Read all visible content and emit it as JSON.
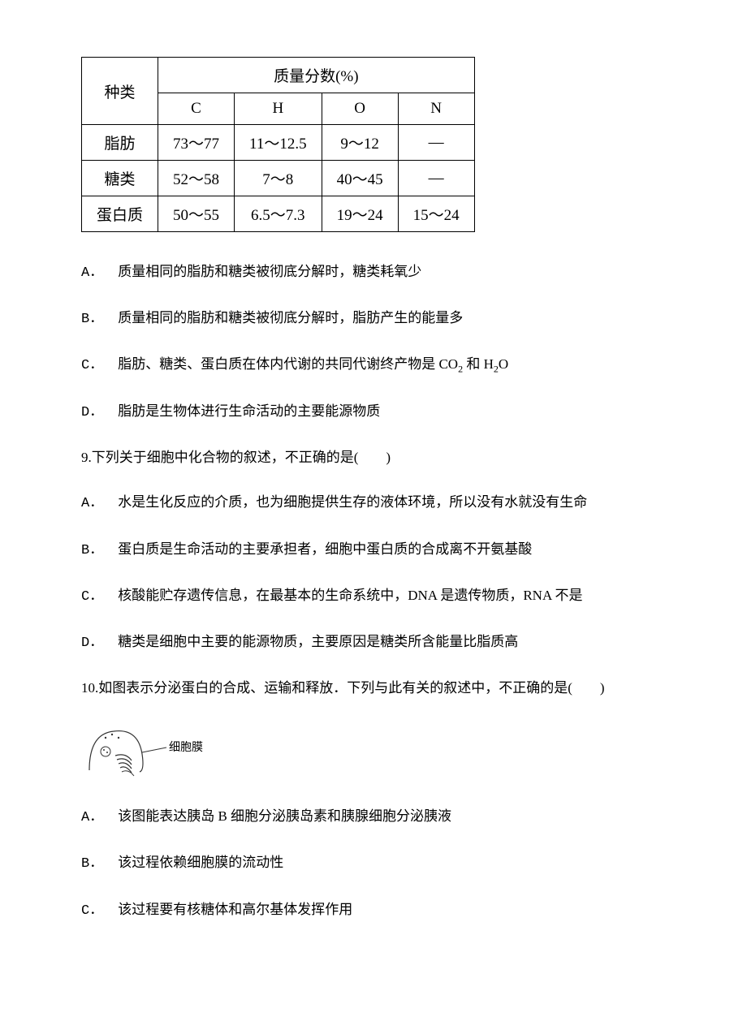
{
  "table": {
    "row_header_label": "种类",
    "group_header": "质量分数(%)",
    "columns": [
      "C",
      "H",
      "O",
      "N"
    ],
    "rows": [
      {
        "label": "脂肪",
        "cells": [
          "73～77",
          "11～12.5",
          "9～12",
          "—"
        ]
      },
      {
        "label": "糖类",
        "cells": [
          "52～58",
          "7～8",
          "40～45",
          "—"
        ]
      },
      {
        "label": "蛋白质",
        "cells": [
          "50～55",
          "6.5～7.3",
          "19～24",
          "15～24"
        ]
      }
    ],
    "border_color": "#000000",
    "background_color": "#ffffff",
    "font_size": 19
  },
  "q8_options": {
    "A": {
      "label": "A．",
      "text": "质量相同的脂肪和糖类被彻底分解时，糖类耗氧少"
    },
    "B": {
      "label": "B．",
      "text": "质量相同的脂肪和糖类被彻底分解时，脂肪产生的能量多"
    },
    "C": {
      "label": "C．",
      "text_html": "脂肪、糖类、蛋白质在体内代谢的共同代谢终产物是 CO<span class=\"sub\">2</span> 和 H<span class=\"sub\">2</span>O"
    },
    "D": {
      "label": "D．",
      "text": "脂肪是生物体进行生命活动的主要能源物质"
    }
  },
  "q9": {
    "stem": "9.下列关于细胞中化合物的叙述，不正确的是(　　)",
    "options": {
      "A": {
        "label": "A．",
        "text": "水是生化反应的介质，也为细胞提供生存的液体环境，所以没有水就没有生命"
      },
      "B": {
        "label": "B．",
        "text": "蛋白质是生命活动的主要承担者，细胞中蛋白质的合成离不开氨基酸"
      },
      "C": {
        "label": "C．",
        "text": "核酸能贮存遗传信息，在最基本的生命系统中，DNA 是遗传物质，RNA 不是"
      },
      "D": {
        "label": "D．",
        "text": "糖类是细胞中主要的能源物质，主要原因是糖类所含能量比脂质高"
      }
    }
  },
  "q10": {
    "stem": "10.如图表示分泌蛋白的合成、运输和释放．下列与此有关的叙述中，不正确的是(　　)",
    "diagram_label": "细胞膜",
    "options": {
      "A": {
        "label": "A．",
        "text": "该图能表达胰岛 B 细胞分泌胰岛素和胰腺细胞分泌胰液"
      },
      "B": {
        "label": "B．",
        "text": "该过程依赖细胞膜的流动性"
      },
      "C": {
        "label": "C．",
        "text": "该过程要有核糖体和高尔基体发挥作用"
      }
    }
  },
  "colors": {
    "text": "#000000",
    "background": "#ffffff",
    "table_border": "#000000",
    "diagram_stroke": "#333333"
  }
}
